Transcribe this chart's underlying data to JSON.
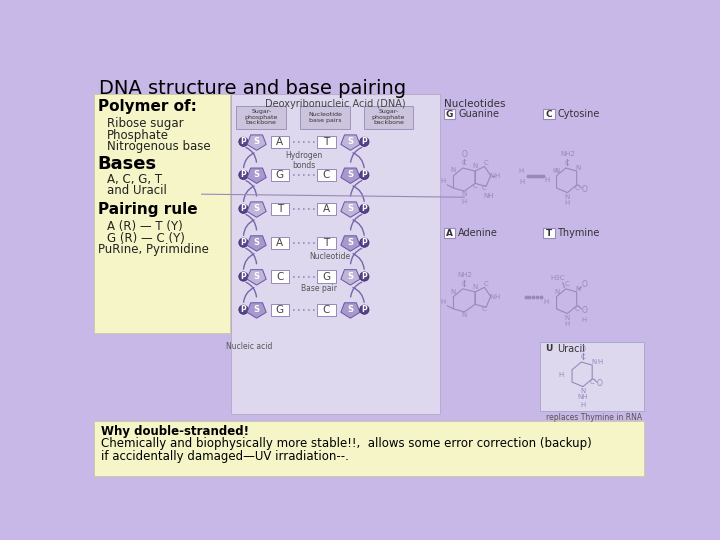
{
  "title": "DNA structure and base pairing",
  "bg_color": "#c8b8e8",
  "left_box_color": "#f5f5c8",
  "center_box_color": "#ddd8ee",
  "bottom_box_color": "#f5f5c8",
  "title_color": "#000000",
  "title_fontsize": 14,
  "polymer_heading": "Polymer of:",
  "polymer_items": [
    "Ribose sugar",
    "Phosphate",
    "Nitrogenous base"
  ],
  "bases_heading": "Bases",
  "bases_items": [
    "A, C, G, T",
    "and Uracil"
  ],
  "pairing_heading": "Pairing rule",
  "pairing_items": [
    "A (R) — T (Y)",
    "G (R) — C (Y)",
    "PuRine, Pyrimidine"
  ],
  "bottom_text_line1": "Why double-stranded!",
  "bottom_text_line2": "Chemically and biophysically more stable!!,  allows some error correction (backup)",
  "bottom_text_line3": "if accidentally damaged—UV irradiation--.",
  "dna_title": "Deoxyribonucleic Acid (DNA)",
  "nucleotides_title": "Nucleotides",
  "sugar_phosphate_label": "Sugar-\nphosphate\nbackbone",
  "nucleotide_base_pairs_label": "Nucleotide\nbase pairs",
  "hydrogen_bonds_label": "Hydrogen\nbonds",
  "nucleotide_label": "Nucleotide",
  "base_pair_label": "Base pair",
  "nucleic_acid_label": "Nucleic acid",
  "replaces_label": "replaces Thymine in RNA",
  "pentagon_color": "#a898cc",
  "pentagon_color_light": "#c0b4d8",
  "p_circle_color": "#554488",
  "box_border_color": "#9988bb",
  "struct_color": "#9988bb",
  "dna_pairs": [
    [
      "A",
      "T"
    ],
    [
      "G",
      "C"
    ],
    [
      "T",
      "A"
    ],
    [
      "A",
      "T"
    ],
    [
      "C",
      "G"
    ],
    [
      "G",
      "C"
    ]
  ]
}
